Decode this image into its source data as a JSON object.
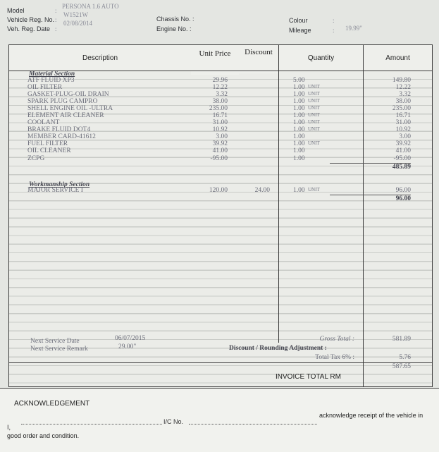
{
  "vehicle": {
    "model_label": "Model",
    "model": "PERSONA 1.6 AUTO",
    "reg_no_label": "Vehicle Reg. No.",
    "reg_no": "W1521W",
    "reg_date_label": "Veh. Reg. Date",
    "reg_date": "02/08/2014",
    "chassis_label": "Chassis No. :",
    "engine_label": "Engine No. :",
    "colour_label": "Colour",
    "mileage_label": "Mileage",
    "mileage": "19.99\"",
    "colon": ":"
  },
  "table": {
    "headers": {
      "description": "Description",
      "unit_price": "Unit Price",
      "discount": "Discount",
      "quantity": "Quantity",
      "amount": "Amount"
    },
    "material_title": "Material Section",
    "material": [
      {
        "desc": "ATF FLUID XP3",
        "price": "29.96",
        "disc": "",
        "qty": "5.00",
        "unit": "",
        "amount": "149.80"
      },
      {
        "desc": "OIL FILTER",
        "price": "12.22",
        "disc": "",
        "qty": "1.00",
        "unit": "UNIT",
        "amount": "12.22"
      },
      {
        "desc": "GASKET-PLUG-OIL DRAIN",
        "price": "3.32",
        "disc": "",
        "qty": "1.00",
        "unit": "UNIT",
        "amount": "3.32"
      },
      {
        "desc": "SPARK PLUG CAMPRO",
        "price": "38.00",
        "disc": "",
        "qty": "1.00",
        "unit": "UNIT",
        "amount": "38.00"
      },
      {
        "desc": "SHELL ENGINE OIL -ULTRA",
        "price": "235.00",
        "disc": "",
        "qty": "1.00",
        "unit": "UNIT",
        "amount": "235.00"
      },
      {
        "desc": "ELEMENT AIR CLEANER",
        "price": "16.71",
        "disc": "",
        "qty": "1.00",
        "unit": "UNIT",
        "amount": "16.71"
      },
      {
        "desc": "COOLANT",
        "price": "31.00",
        "disc": "",
        "qty": "1.00",
        "unit": "UNIT",
        "amount": "31.00"
      },
      {
        "desc": "BRAKE FLUID DOT4",
        "price": "10.92",
        "disc": "",
        "qty": "1.00",
        "unit": "UNIT",
        "amount": "10.92"
      },
      {
        "desc": "MEMBER CARD-41612",
        "price": "3.00",
        "disc": "",
        "qty": "1.00",
        "unit": "",
        "amount": "3.00"
      },
      {
        "desc": "FUEL FILTER",
        "price": "39.92",
        "disc": "",
        "qty": "1.00",
        "unit": "UNIT",
        "amount": "39.92"
      },
      {
        "desc": "OIL CLEANER",
        "price": "41.00",
        "disc": "",
        "qty": "1.00",
        "unit": "",
        "amount": "41.00"
      },
      {
        "desc": "ZCPG",
        "price": "-95.00",
        "disc": "",
        "qty": "1.00",
        "unit": "",
        "amount": "-95.00"
      }
    ],
    "material_subtotal": "485.89",
    "workmanship_title": "Workmanship Section",
    "workmanship": [
      {
        "desc": "MAJOR SERVICE I",
        "price": "120.00",
        "disc": "24.00",
        "qty": "1.00",
        "unit": "UNIT",
        "amount": "96.00"
      }
    ],
    "workmanship_subtotal": "96.00"
  },
  "footer": {
    "next_service_date_label": "Next Service Date",
    "next_service_date": "06/07/2015",
    "next_service_remark_label": "Next Service Remark",
    "next_service_remark": "29.00\"",
    "gross_total_label": "Gross Total :",
    "gross_total": "581.89",
    "discount_label": "Discount / Rounding Adjustment :",
    "tax_label": "Total Tax 6% :",
    "tax": "5.76",
    "invoice_total_label": "INVOICE TOTAL RM",
    "invoice_total": "587.65"
  },
  "acknowledgement": {
    "title": "ACKNOWLEDGEMENT",
    "i_label": "I,",
    "ic_label": "I/C No.",
    "text": "acknowledge receipt of the vehicle in",
    "text2": "good order and condition."
  }
}
